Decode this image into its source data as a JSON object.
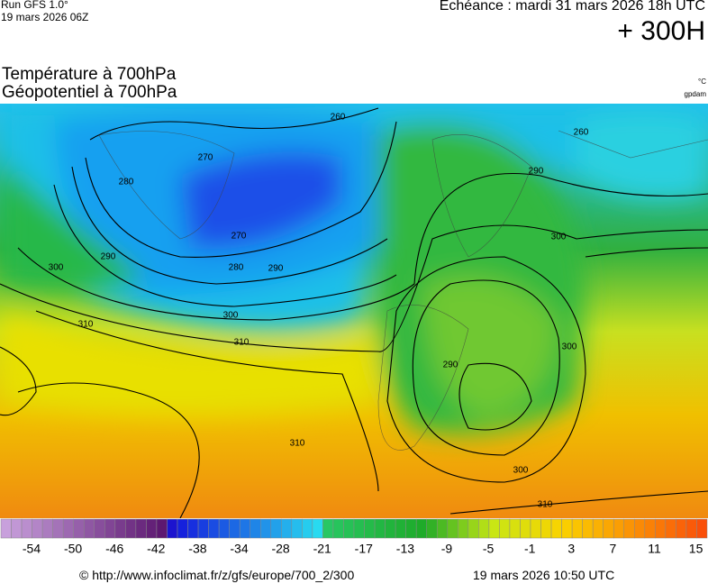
{
  "header": {
    "run": "Run GFS 1.0°",
    "run_date": "19 mars 2026 06Z",
    "valid": "Echéance : mardi 31 mars 2026 18h UTC",
    "lead": "+ 300H",
    "title_line1": "Température à 700hPa",
    "title_line2": "Géopotentiel à 700hPa",
    "unit_temp": "°C",
    "unit_geo": "gpdam"
  },
  "map": {
    "contour_labels": [
      "260",
      "260",
      "270",
      "280",
      "270",
      "280",
      "290",
      "290",
      "300",
      "300",
      "310",
      "290",
      "300",
      "290",
      "300",
      "300",
      "310",
      "310",
      "310"
    ]
  },
  "colorbar": {
    "labels": [
      "-54",
      "-50",
      "-46",
      "-42",
      "-38",
      "-34",
      "-28",
      "-21",
      "-17",
      "-13",
      "-9",
      "-5",
      "-1",
      "3",
      "7",
      "11",
      "15"
    ]
  },
  "footer": {
    "source": "© http://www.infoclimat.fr/z/gfs/europe/700_2/300",
    "generated": "19 mars 2026 10:50 UTC"
  }
}
